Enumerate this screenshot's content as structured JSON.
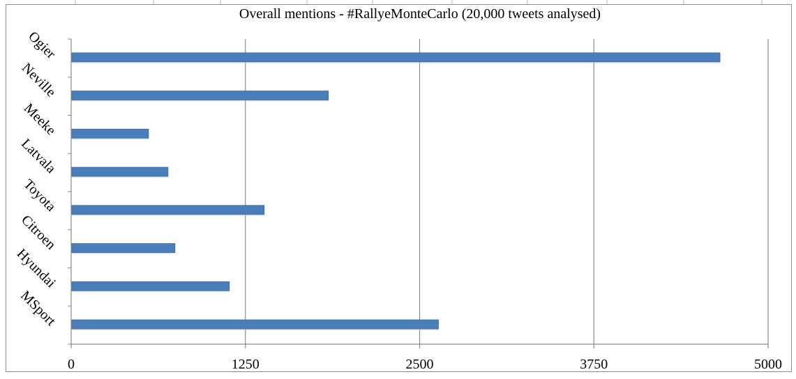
{
  "chart_data": {
    "type": "bar",
    "orientation": "horizontal",
    "title": "Overall mentions - #RallyeMonteCarlo (20,000 tweets analysed)",
    "xlabel": "",
    "ylabel": "",
    "categories": [
      "Ogier",
      "Neville",
      "Meeke",
      "Latvala",
      "Toyota",
      "Citroen",
      "Hyundai",
      "MSport"
    ],
    "values": [
      4650,
      1840,
      550,
      690,
      1380,
      740,
      1130,
      2630
    ],
    "xlim": [
      0,
      5000
    ],
    "xticks": [
      "0",
      "1250",
      "2500",
      "3750",
      "5000"
    ],
    "xtick_values": [
      0,
      1250,
      2500,
      3750,
      5000
    ],
    "grid": "vertical",
    "legend": "none",
    "bar_color": "#4a7ebb",
    "bar_border_color": "#3a6aa3"
  }
}
